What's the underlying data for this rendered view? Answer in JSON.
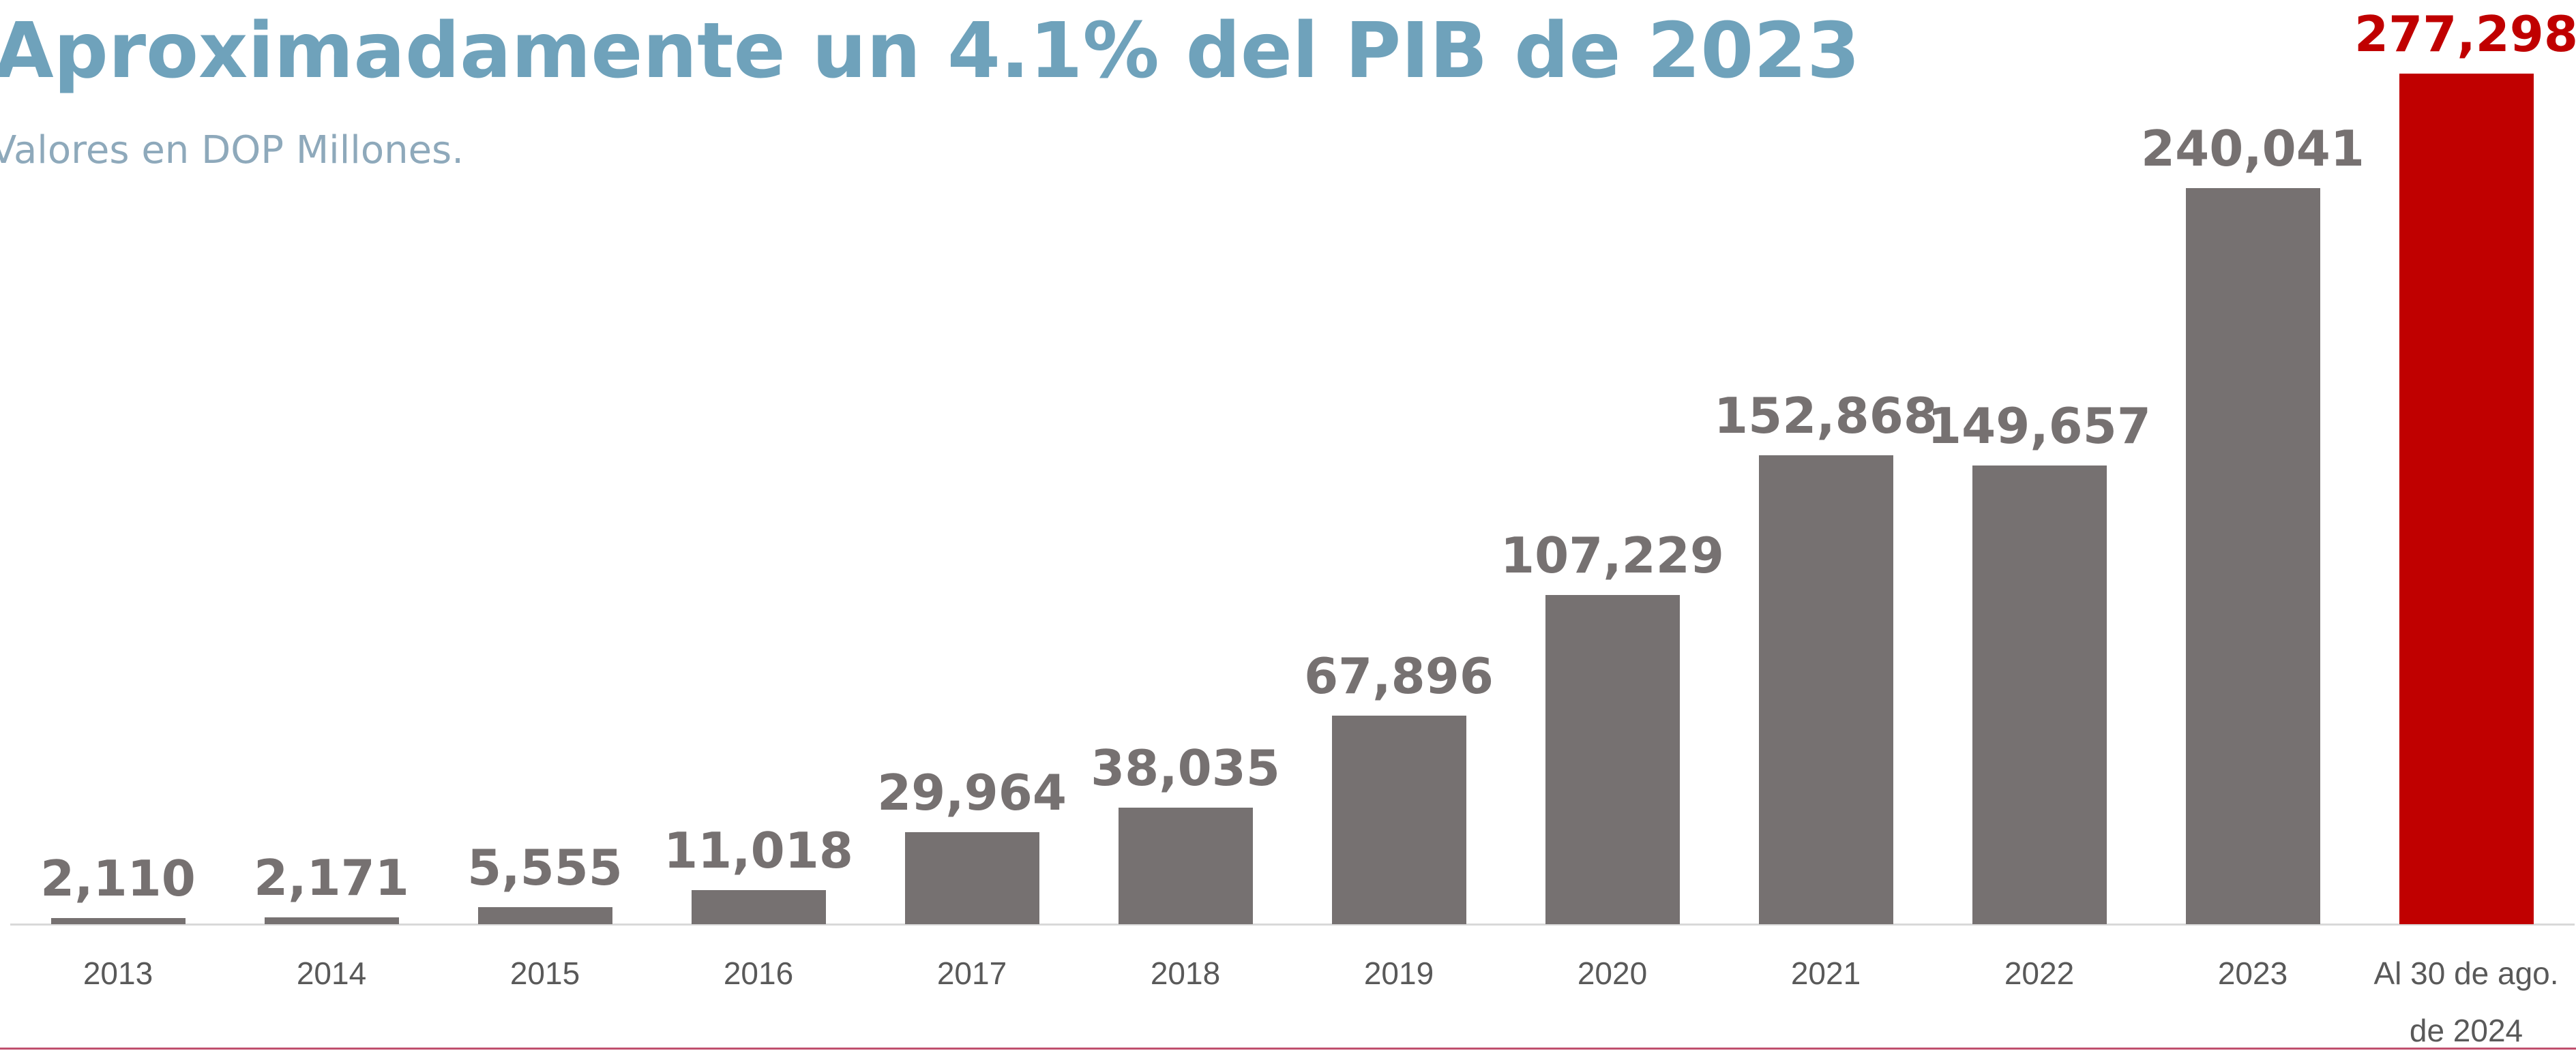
{
  "chart_data": {
    "type": "bar",
    "title": "Aproximadamente un 4.1% del PIB de 2023",
    "subtitle": "Valores en DOP Millones.",
    "categories": [
      "2013",
      "2014",
      "2015",
      "2016",
      "2017",
      "2018",
      "2019",
      "2020",
      "2021",
      "2022",
      "2023",
      "Al 30 de ago. de 2024"
    ],
    "values": [
      2110,
      2171,
      5555,
      11018,
      29964,
      38035,
      67896,
      107229,
      152868,
      149657,
      240041,
      277298
    ],
    "value_labels": [
      "2,110",
      "2,171",
      "5,555",
      "11,018",
      "29,964",
      "38,035",
      "67,896",
      "107,229",
      "152,868",
      "149,657",
      "240,041",
      "277,298"
    ],
    "colors": [
      "#767171",
      "#767171",
      "#767171",
      "#767171",
      "#767171",
      "#767171",
      "#767171",
      "#767171",
      "#767171",
      "#767171",
      "#767171",
      "#c00000"
    ],
    "ylim": [
      0,
      280000
    ]
  }
}
